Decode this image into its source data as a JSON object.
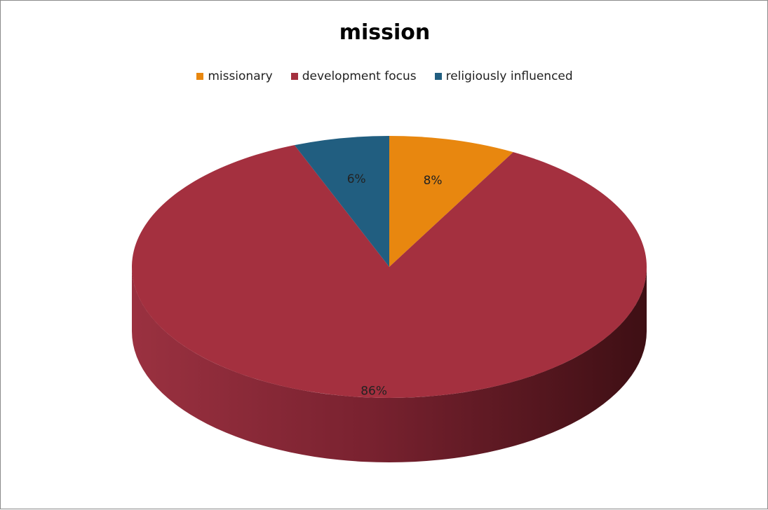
{
  "chart_data": {
    "type": "pie",
    "title": "mission",
    "legend_position": "top",
    "categories": [
      "missionary",
      "development focus",
      "religiously influenced"
    ],
    "values": [
      8,
      86,
      6
    ],
    "data_labels": [
      "8%",
      "86%",
      "6%"
    ],
    "colors": [
      "#e8870f",
      "#a4303f",
      "#215e80"
    ],
    "three_d": true
  }
}
